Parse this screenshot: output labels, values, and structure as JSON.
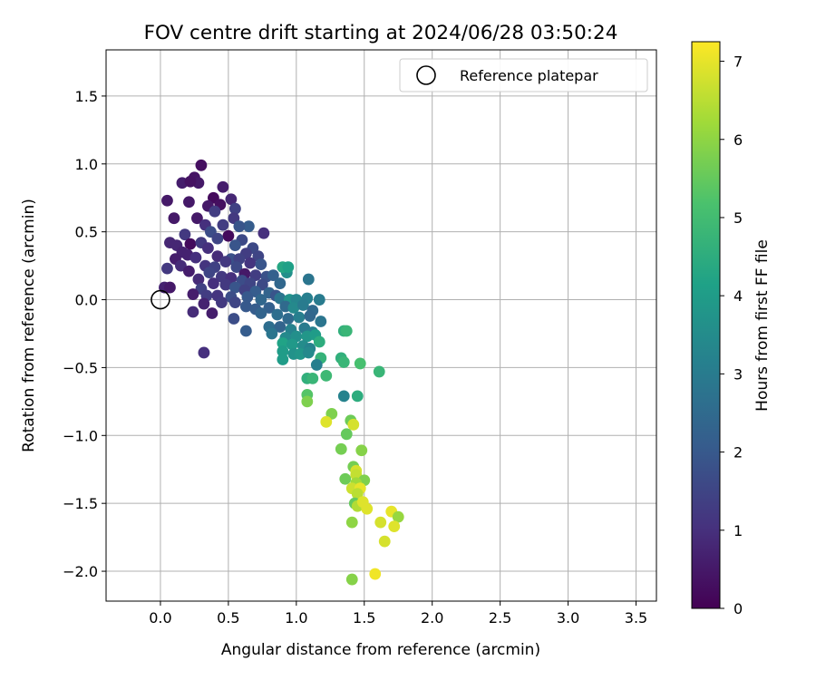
{
  "chart_data": {
    "type": "scatter",
    "title": "FOV centre drift starting at 2024/06/28 03:50:24",
    "xlabel": "Angular distance from reference (arcmin)",
    "ylabel": "Rotation from reference (arcmin)",
    "xlim": [
      -0.4,
      3.65
    ],
    "ylim": [
      -2.22,
      1.84
    ],
    "xticks": [
      "0.0",
      "0.5",
      "1.0",
      "1.5",
      "2.0",
      "2.5",
      "3.0",
      "3.5"
    ],
    "xtick_values": [
      0.0,
      0.5,
      1.0,
      1.5,
      2.0,
      2.5,
      3.0,
      3.5
    ],
    "yticks": [
      "1.5",
      "1.0",
      "0.5",
      "0.0",
      "−0.5",
      "−1.0",
      "−1.5",
      "−2.0"
    ],
    "ytick_values": [
      1.5,
      1.0,
      0.5,
      0.0,
      -0.5,
      -1.0,
      -1.5,
      -2.0
    ],
    "grid": true,
    "legend": {
      "placement": "top-right",
      "entries": [
        "Reference platepar"
      ]
    },
    "reference_point": {
      "x": 0.0,
      "y": 0.0
    },
    "colorbar": {
      "label": "Hours from first FF file",
      "colormap": "viridis",
      "range": [
        0,
        7.25
      ],
      "ticks": [
        "0",
        "1",
        "2",
        "3",
        "4",
        "5",
        "6",
        "7"
      ],
      "tick_values": [
        0,
        1,
        2,
        3,
        4,
        5,
        6,
        7
      ]
    },
    "points": [
      {
        "x": 0.3,
        "y": 0.99,
        "h": 0.3
      },
      {
        "x": 0.25,
        "y": 0.9,
        "h": 0.4
      },
      {
        "x": 0.28,
        "y": 0.86,
        "h": 0.5
      },
      {
        "x": 0.16,
        "y": 0.86,
        "h": 0.6
      },
      {
        "x": 0.46,
        "y": 0.83,
        "h": 0.6
      },
      {
        "x": 0.22,
        "y": 0.87,
        "h": 0.35
      },
      {
        "x": 0.39,
        "y": 0.75,
        "h": 0.2
      },
      {
        "x": 0.52,
        "y": 0.74,
        "h": 0.8
      },
      {
        "x": 0.05,
        "y": 0.73,
        "h": 0.5
      },
      {
        "x": 0.21,
        "y": 0.72,
        "h": 0.5
      },
      {
        "x": 0.35,
        "y": 0.69,
        "h": 0.5
      },
      {
        "x": 0.44,
        "y": 0.7,
        "h": 0.3
      },
      {
        "x": 0.4,
        "y": 0.65,
        "h": 1.3
      },
      {
        "x": 0.55,
        "y": 0.67,
        "h": 1.4
      },
      {
        "x": 0.1,
        "y": 0.6,
        "h": 0.5
      },
      {
        "x": 0.27,
        "y": 0.6,
        "h": 0.5
      },
      {
        "x": 0.33,
        "y": 0.55,
        "h": 1.0
      },
      {
        "x": 0.46,
        "y": 0.55,
        "h": 1.3
      },
      {
        "x": 0.54,
        "y": 0.6,
        "h": 1.2
      },
      {
        "x": 0.65,
        "y": 0.54,
        "h": 2.1
      },
      {
        "x": 0.58,
        "y": 0.54,
        "h": 1.9
      },
      {
        "x": 0.76,
        "y": 0.49,
        "h": 1.0
      },
      {
        "x": 0.18,
        "y": 0.48,
        "h": 1.2
      },
      {
        "x": 0.37,
        "y": 0.5,
        "h": 1.7
      },
      {
        "x": 0.5,
        "y": 0.47,
        "h": 0.2
      },
      {
        "x": 0.42,
        "y": 0.45,
        "h": 1.5
      },
      {
        "x": 0.6,
        "y": 0.44,
        "h": 1.6
      },
      {
        "x": 0.07,
        "y": 0.42,
        "h": 0.8
      },
      {
        "x": 0.12,
        "y": 0.4,
        "h": 0.8
      },
      {
        "x": 0.22,
        "y": 0.41,
        "h": 0.2
      },
      {
        "x": 0.3,
        "y": 0.42,
        "h": 1.2
      },
      {
        "x": 0.55,
        "y": 0.4,
        "h": 1.9
      },
      {
        "x": 0.68,
        "y": 0.38,
        "h": 1.6
      },
      {
        "x": 0.16,
        "y": 0.35,
        "h": 0.7
      },
      {
        "x": 0.2,
        "y": 0.33,
        "h": 0.7
      },
      {
        "x": 0.35,
        "y": 0.38,
        "h": 1.0
      },
      {
        "x": 0.42,
        "y": 0.32,
        "h": 0.9
      },
      {
        "x": 0.63,
        "y": 0.34,
        "h": 1.3
      },
      {
        "x": 0.72,
        "y": 0.32,
        "h": 1.5
      },
      {
        "x": 0.11,
        "y": 0.3,
        "h": 0.6
      },
      {
        "x": 0.26,
        "y": 0.31,
        "h": 1.0
      },
      {
        "x": 0.52,
        "y": 0.3,
        "h": 1.8
      },
      {
        "x": 0.58,
        "y": 0.3,
        "h": 1.4
      },
      {
        "x": 0.48,
        "y": 0.28,
        "h": 1.2
      },
      {
        "x": 0.66,
        "y": 0.27,
        "h": 1.1
      },
      {
        "x": 0.74,
        "y": 0.26,
        "h": 1.9
      },
      {
        "x": 0.15,
        "y": 0.25,
        "h": 0.9
      },
      {
        "x": 0.33,
        "y": 0.25,
        "h": 1.1
      },
      {
        "x": 0.4,
        "y": 0.24,
        "h": 1.4
      },
      {
        "x": 0.56,
        "y": 0.24,
        "h": 1.6
      },
      {
        "x": 0.05,
        "y": 0.23,
        "h": 1.2
      },
      {
        "x": 0.21,
        "y": 0.21,
        "h": 0.6
      },
      {
        "x": 0.36,
        "y": 0.2,
        "h": 1.5
      },
      {
        "x": 0.62,
        "y": 0.19,
        "h": 0.5
      },
      {
        "x": 0.7,
        "y": 0.18,
        "h": 1.3
      },
      {
        "x": 0.78,
        "y": 0.17,
        "h": 1.8
      },
      {
        "x": 0.83,
        "y": 0.18,
        "h": 2.2
      },
      {
        "x": 0.45,
        "y": 0.17,
        "h": 1.2
      },
      {
        "x": 0.52,
        "y": 0.16,
        "h": 1.0
      },
      {
        "x": 0.28,
        "y": 0.15,
        "h": 0.9
      },
      {
        "x": 0.6,
        "y": 0.14,
        "h": 1.7
      },
      {
        "x": 0.66,
        "y": 0.12,
        "h": 1.5
      },
      {
        "x": 0.75,
        "y": 0.11,
        "h": 1.6
      },
      {
        "x": 0.88,
        "y": 0.12,
        "h": 2.4
      },
      {
        "x": 0.93,
        "y": 0.2,
        "h": 3.6
      },
      {
        "x": 0.9,
        "y": 0.24,
        "h": 4.3
      },
      {
        "x": 0.94,
        "y": 0.24,
        "h": 4.1
      },
      {
        "x": 1.09,
        "y": 0.15,
        "h": 2.8
      },
      {
        "x": 0.39,
        "y": 0.12,
        "h": 1.0
      },
      {
        "x": 0.48,
        "y": 0.11,
        "h": 1.2
      },
      {
        "x": 0.55,
        "y": 0.09,
        "h": 1.9
      },
      {
        "x": 0.03,
        "y": 0.09,
        "h": 0.7
      },
      {
        "x": 0.07,
        "y": 0.09,
        "h": 0.5
      },
      {
        "x": 0.3,
        "y": 0.08,
        "h": 1.4
      },
      {
        "x": 0.62,
        "y": 0.07,
        "h": 1.4
      },
      {
        "x": 0.7,
        "y": 0.06,
        "h": 2.1
      },
      {
        "x": 0.8,
        "y": 0.05,
        "h": 2.3
      },
      {
        "x": 0.85,
        "y": 0.03,
        "h": 1.9
      },
      {
        "x": 0.24,
        "y": 0.04,
        "h": 0.6
      },
      {
        "x": 0.34,
        "y": 0.03,
        "h": 1.3
      },
      {
        "x": 0.42,
        "y": 0.03,
        "h": 1.1
      },
      {
        "x": 0.52,
        "y": 0.02,
        "h": 1.7
      },
      {
        "x": 0.64,
        "y": 0.02,
        "h": 2.0
      },
      {
        "x": 0.74,
        "y": 0.0,
        "h": 2.4
      },
      {
        "x": 0.88,
        "y": 0.01,
        "h": 2.8
      },
      {
        "x": 0.95,
        "y": 0.0,
        "h": 3.7
      },
      {
        "x": 1.0,
        "y": 0.0,
        "h": 3.3
      },
      {
        "x": 1.08,
        "y": 0.01,
        "h": 3.1
      },
      {
        "x": 1.17,
        "y": 0.0,
        "h": 3.0
      },
      {
        "x": 0.32,
        "y": -0.03,
        "h": 0.7
      },
      {
        "x": 0.45,
        "y": -0.02,
        "h": 1.2
      },
      {
        "x": 0.55,
        "y": -0.02,
        "h": 1.5
      },
      {
        "x": 0.63,
        "y": -0.05,
        "h": 2.0
      },
      {
        "x": 0.7,
        "y": -0.07,
        "h": 2.1
      },
      {
        "x": 0.8,
        "y": -0.06,
        "h": 2.2
      },
      {
        "x": 0.92,
        "y": -0.05,
        "h": 2.5
      },
      {
        "x": 0.98,
        "y": -0.06,
        "h": 3.4
      },
      {
        "x": 1.05,
        "y": -0.04,
        "h": 3.0
      },
      {
        "x": 1.12,
        "y": -0.08,
        "h": 2.5
      },
      {
        "x": 0.24,
        "y": -0.09,
        "h": 0.9
      },
      {
        "x": 0.38,
        "y": -0.1,
        "h": 0.6
      },
      {
        "x": 0.54,
        "y": -0.14,
        "h": 1.7
      },
      {
        "x": 0.74,
        "y": -0.1,
        "h": 2.3
      },
      {
        "x": 0.86,
        "y": -0.11,
        "h": 2.6
      },
      {
        "x": 0.94,
        "y": -0.14,
        "h": 2.5
      },
      {
        "x": 1.02,
        "y": -0.13,
        "h": 3.1
      },
      {
        "x": 1.1,
        "y": -0.12,
        "h": 2.4
      },
      {
        "x": 1.18,
        "y": -0.16,
        "h": 2.8
      },
      {
        "x": 0.8,
        "y": -0.2,
        "h": 2.6
      },
      {
        "x": 0.88,
        "y": -0.2,
        "h": 2.3
      },
      {
        "x": 0.96,
        "y": -0.22,
        "h": 3.2
      },
      {
        "x": 1.06,
        "y": -0.21,
        "h": 3.0
      },
      {
        "x": 1.12,
        "y": -0.24,
        "h": 3.1
      },
      {
        "x": 0.63,
        "y": -0.23,
        "h": 2.1
      },
      {
        "x": 0.82,
        "y": -0.25,
        "h": 2.8
      },
      {
        "x": 0.92,
        "y": -0.28,
        "h": 3.4
      },
      {
        "x": 1.0,
        "y": -0.27,
        "h": 3.6
      },
      {
        "x": 1.08,
        "y": -0.27,
        "h": 3.8
      },
      {
        "x": 1.14,
        "y": -0.26,
        "h": 4.0
      },
      {
        "x": 1.17,
        "y": -0.31,
        "h": 4.5
      },
      {
        "x": 1.35,
        "y": -0.23,
        "h": 4.6
      },
      {
        "x": 1.37,
        "y": -0.23,
        "h": 4.8
      },
      {
        "x": 0.9,
        "y": -0.32,
        "h": 4.2
      },
      {
        "x": 0.97,
        "y": -0.33,
        "h": 3.9
      },
      {
        "x": 1.05,
        "y": -0.34,
        "h": 3.5
      },
      {
        "x": 1.1,
        "y": -0.36,
        "h": 3.2
      },
      {
        "x": 0.9,
        "y": -0.38,
        "h": 4.0
      },
      {
        "x": 0.98,
        "y": -0.4,
        "h": 3.7
      },
      {
        "x": 1.03,
        "y": -0.4,
        "h": 3.8
      },
      {
        "x": 1.09,
        "y": -0.39,
        "h": 3.4
      },
      {
        "x": 0.32,
        "y": -0.39,
        "h": 1.0
      },
      {
        "x": 0.9,
        "y": -0.44,
        "h": 4.0
      },
      {
        "x": 1.18,
        "y": -0.43,
        "h": 4.7
      },
      {
        "x": 1.33,
        "y": -0.43,
        "h": 4.6
      },
      {
        "x": 1.35,
        "y": -0.46,
        "h": 4.8
      },
      {
        "x": 1.47,
        "y": -0.47,
        "h": 5.1
      },
      {
        "x": 1.15,
        "y": -0.48,
        "h": 3.1
      },
      {
        "x": 1.22,
        "y": -0.56,
        "h": 4.9
      },
      {
        "x": 1.08,
        "y": -0.58,
        "h": 4.6
      },
      {
        "x": 1.12,
        "y": -0.58,
        "h": 4.8
      },
      {
        "x": 1.61,
        "y": -0.53,
        "h": 4.8
      },
      {
        "x": 1.35,
        "y": -0.71,
        "h": 3.2
      },
      {
        "x": 1.45,
        "y": -0.71,
        "h": 4.5
      },
      {
        "x": 1.08,
        "y": -0.7,
        "h": 5.3
      },
      {
        "x": 1.08,
        "y": -0.75,
        "h": 5.8
      },
      {
        "x": 1.26,
        "y": -0.84,
        "h": 5.8
      },
      {
        "x": 1.22,
        "y": -0.9,
        "h": 6.9
      },
      {
        "x": 1.4,
        "y": -0.89,
        "h": 5.6
      },
      {
        "x": 1.42,
        "y": -0.92,
        "h": 6.8
      },
      {
        "x": 1.37,
        "y": -0.99,
        "h": 5.5
      },
      {
        "x": 1.33,
        "y": -1.1,
        "h": 5.7
      },
      {
        "x": 1.48,
        "y": -1.11,
        "h": 5.9
      },
      {
        "x": 1.42,
        "y": -1.23,
        "h": 5.7
      },
      {
        "x": 1.44,
        "y": -1.26,
        "h": 6.8
      },
      {
        "x": 1.44,
        "y": -1.29,
        "h": 6.6
      },
      {
        "x": 1.36,
        "y": -1.32,
        "h": 5.6
      },
      {
        "x": 1.5,
        "y": -1.33,
        "h": 5.8
      },
      {
        "x": 1.44,
        "y": -1.35,
        "h": 6.2
      },
      {
        "x": 1.41,
        "y": -1.39,
        "h": 6.7
      },
      {
        "x": 1.47,
        "y": -1.39,
        "h": 7.0
      },
      {
        "x": 1.45,
        "y": -1.43,
        "h": 6.5
      },
      {
        "x": 1.43,
        "y": -1.5,
        "h": 5.5
      },
      {
        "x": 1.45,
        "y": -1.52,
        "h": 6.4
      },
      {
        "x": 1.49,
        "y": -1.49,
        "h": 6.9
      },
      {
        "x": 1.52,
        "y": -1.54,
        "h": 6.9
      },
      {
        "x": 1.41,
        "y": -1.64,
        "h": 6.0
      },
      {
        "x": 1.62,
        "y": -1.64,
        "h": 6.8
      },
      {
        "x": 1.7,
        "y": -1.56,
        "h": 7.0
      },
      {
        "x": 1.75,
        "y": -1.6,
        "h": 6.1
      },
      {
        "x": 1.72,
        "y": -1.67,
        "h": 6.9
      },
      {
        "x": 1.65,
        "y": -1.78,
        "h": 6.8
      },
      {
        "x": 1.41,
        "y": -2.06,
        "h": 5.9
      },
      {
        "x": 1.58,
        "y": -2.02,
        "h": 7.1
      }
    ]
  }
}
